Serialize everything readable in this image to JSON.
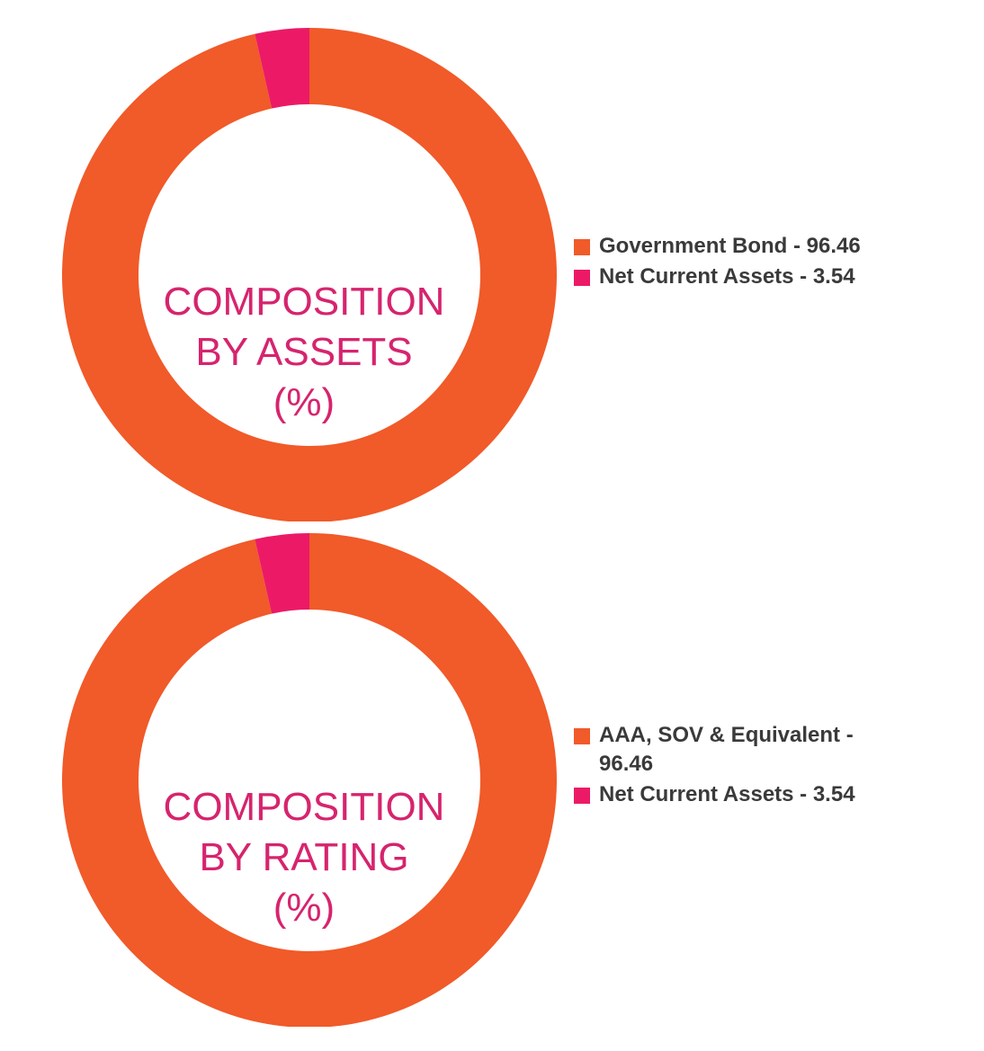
{
  "chart_data": [
    {
      "type": "pie",
      "title_lines": [
        "COMPOSITION",
        "BY ASSETS",
        "(%)"
      ],
      "slices": [
        {
          "label": "Government Bond - 96.46",
          "value": 96.46,
          "color": "#f15a29"
        },
        {
          "label": "Net Current Assets - 3.54",
          "value": 3.54,
          "color": "#ec1a66"
        }
      ],
      "legend_position": "right",
      "donut": true
    },
    {
      "type": "pie",
      "title_lines": [
        "COMPOSITION",
        "BY RATING",
        "(%)"
      ],
      "slices": [
        {
          "label": "AAA, SOV & Equivalent - 96.46",
          "value": 96.46,
          "color": "#f15a29"
        },
        {
          "label": "Net Current Assets - 3.54",
          "value": 3.54,
          "color": "#ec1a66"
        }
      ],
      "legend_position": "right",
      "donut": true
    }
  ],
  "colors": {
    "title": "#d6246e",
    "legend_text": "#3a3a3a"
  }
}
